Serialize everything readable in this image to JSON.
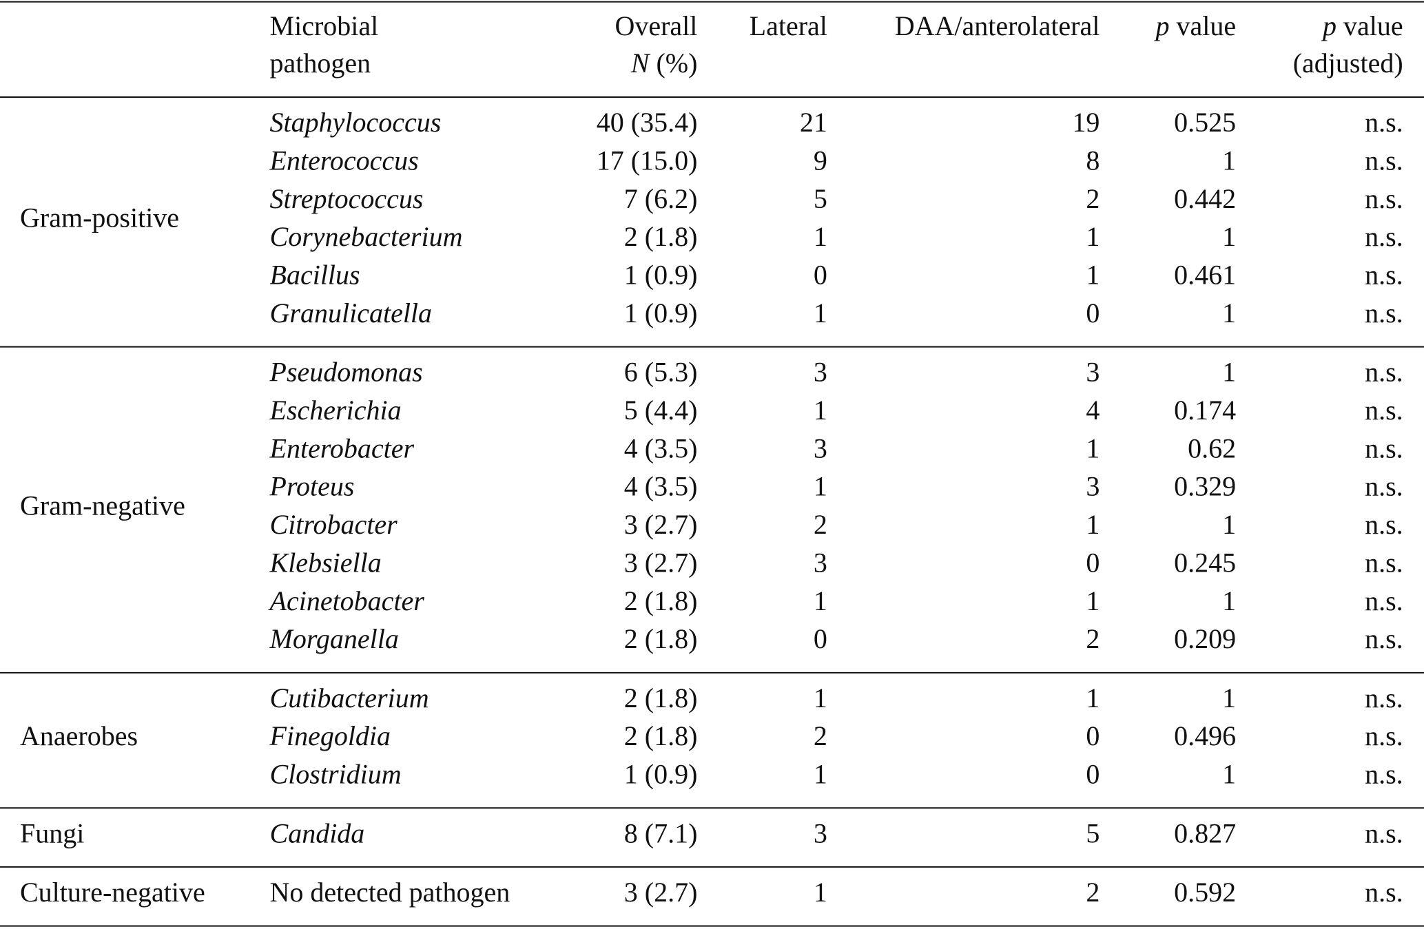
{
  "header": [
    {
      "lines": [
        [
          {
            "text": "Microbial"
          }
        ],
        [
          {
            "text": "pathogen"
          }
        ]
      ]
    },
    {
      "lines": [
        [
          {
            "text": "Overall"
          }
        ],
        [
          {
            "text": "N",
            "italic": true
          },
          {
            "text": " (%)"
          }
        ]
      ]
    },
    {
      "lines": [
        [
          {
            "text": "Lateral"
          }
        ]
      ]
    },
    {
      "lines": [
        [
          {
            "text": "DAA/anterolateral"
          }
        ]
      ]
    },
    {
      "lines": [
        [
          {
            "text": "p",
            "italic": true
          },
          {
            "text": " value"
          }
        ]
      ]
    },
    {
      "lines": [
        [
          {
            "text": "p",
            "italic": true
          },
          {
            "text": " value"
          }
        ],
        [
          {
            "text": "(adjusted)"
          }
        ]
      ]
    }
  ],
  "groups": [
    {
      "label": "Gram-positive",
      "pathogen_italic": true,
      "rows": [
        [
          "Staphylococcus",
          "40 (35.4)",
          21,
          19,
          0.525,
          "n.s."
        ],
        [
          "Enterococcus",
          "17 (15.0)",
          9,
          8,
          1,
          "n.s."
        ],
        [
          "Streptococcus",
          "7 (6.2)",
          5,
          2,
          0.442,
          "n.s."
        ],
        [
          "Corynebacterium",
          "2 (1.8)",
          1,
          1,
          1,
          "n.s."
        ],
        [
          "Bacillus",
          "1 (0.9)",
          0,
          1,
          0.461,
          "n.s."
        ],
        [
          "Granulicatella",
          "1 (0.9)",
          1,
          0,
          1,
          "n.s."
        ]
      ]
    },
    {
      "label": "Gram-negative",
      "pathogen_italic": true,
      "rows": [
        [
          "Pseudomonas",
          "6 (5.3)",
          3,
          3,
          1,
          "n.s."
        ],
        [
          "Escherichia",
          "5 (4.4)",
          1,
          4,
          0.174,
          "n.s."
        ],
        [
          "Enterobacter",
          "4 (3.5)",
          3,
          1,
          0.62,
          "n.s."
        ],
        [
          "Proteus",
          "4 (3.5)",
          1,
          3,
          0.329,
          "n.s."
        ],
        [
          "Citrobacter",
          "3 (2.7)",
          2,
          1,
          1,
          "n.s."
        ],
        [
          "Klebsiella",
          "3 (2.7)",
          3,
          0,
          0.245,
          "n.s."
        ],
        [
          "Acinetobacter",
          "2 (1.8)",
          1,
          1,
          1,
          "n.s."
        ],
        [
          "Morganella",
          "2 (1.8)",
          0,
          2,
          0.209,
          "n.s."
        ]
      ]
    },
    {
      "label": "Anaerobes",
      "pathogen_italic": true,
      "rows": [
        [
          "Cutibacterium",
          "2 (1.8)",
          1,
          1,
          1,
          "n.s."
        ],
        [
          "Finegoldia",
          "2 (1.8)",
          2,
          0,
          0.496,
          "n.s."
        ],
        [
          "Clostridium",
          "1 (0.9)",
          1,
          0,
          1,
          "n.s."
        ]
      ]
    },
    {
      "label": "Fungi",
      "pathogen_italic": true,
      "rows": [
        [
          "Candida",
          "8 (7.1)",
          3,
          5,
          0.827,
          "n.s."
        ]
      ]
    },
    {
      "label": "Culture-negative",
      "pathogen_italic": false,
      "rows": [
        [
          "No detected pathogen",
          "3 (2.7)",
          1,
          2,
          0.592,
          "n.s."
        ]
      ]
    }
  ]
}
